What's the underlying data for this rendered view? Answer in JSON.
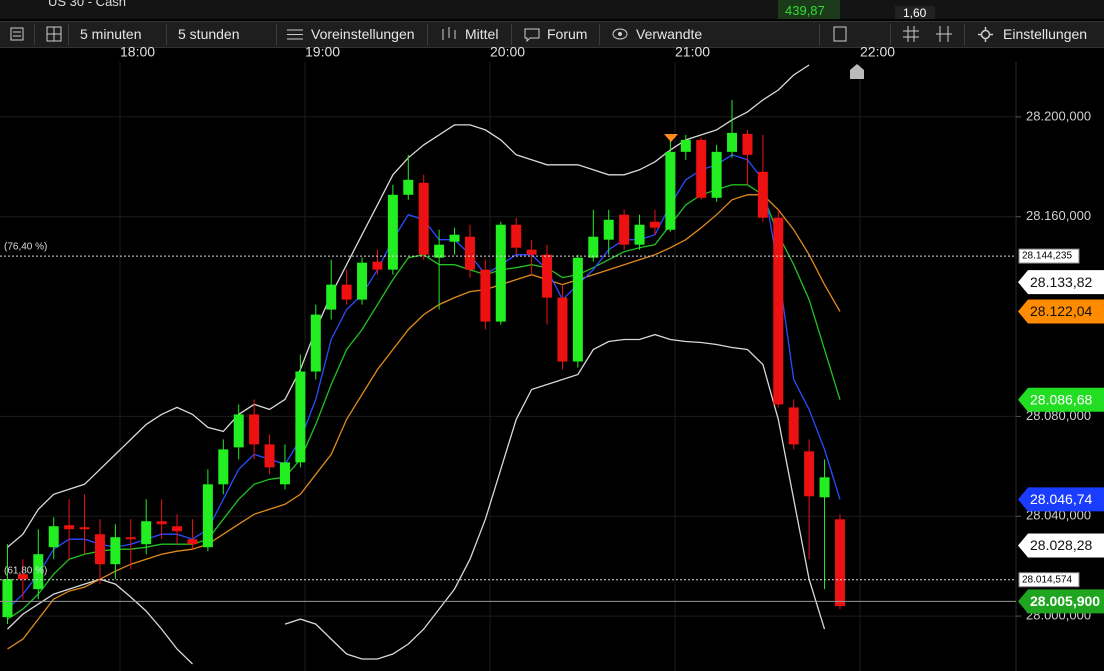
{
  "app": {
    "instrument": "US 30 - Cash",
    "price": "439,87",
    "change": "1,60"
  },
  "toolbar": {
    "items": [
      "5 minuten",
      "5 stunden",
      "Voreinstellungen",
      "Mittel",
      "Forum",
      "Verwandte",
      "Einstellungen"
    ]
  },
  "chart_data": {
    "type": "candlestick",
    "x": [
      "17:20",
      "17:25",
      "17:30",
      "17:35",
      "17:40",
      "17:45",
      "17:50",
      "17:55",
      "18:00",
      "18:05",
      "18:10",
      "18:15",
      "18:20",
      "18:25",
      "18:30",
      "18:35",
      "18:40",
      "18:45",
      "18:50",
      "18:55",
      "19:00",
      "19:05",
      "19:10",
      "19:15",
      "19:20",
      "19:25",
      "19:30",
      "19:35",
      "19:40",
      "19:45",
      "19:50",
      "19:55",
      "20:00",
      "20:05",
      "20:10",
      "20:15",
      "20:20",
      "20:25",
      "20:30",
      "20:35",
      "20:40",
      "20:45",
      "20:50",
      "20:55",
      "21:00",
      "21:05",
      "21:10",
      "21:15",
      "21:20",
      "21:25",
      "21:30",
      "21:35",
      "21:40",
      "21:45",
      "21:50"
    ],
    "open": [
      27999.6,
      28016.8,
      28010.8,
      28027.6,
      28036.4,
      28035.6,
      28032.8,
      28020.8,
      28031.6,
      28028.8,
      28038.0,
      28036.0,
      28030.8,
      28027.6,
      28052.8,
      28067.6,
      28080.8,
      28068.8,
      28052.8,
      28061.6,
      28098.0,
      28122.8,
      28132.8,
      28126.8,
      28142.0,
      28138.8,
      28168.8,
      28173.6,
      28143.6,
      28150.0,
      28152.0,
      28138.8,
      28118.0,
      28156.8,
      28146.8,
      28144.8,
      28127.6,
      28102.0,
      28143.6,
      28150.8,
      28160.8,
      28148.8,
      28158.0,
      28154.8,
      28186.0,
      28190.8,
      28167.6,
      28186.0,
      28193.2,
      28178.0,
      28159.6,
      28083.6,
      28066.0,
      28047.6,
      28038.8
    ],
    "high": [
      28028.8,
      28022.8,
      28034.8,
      28039.6,
      28046.8,
      28048.8,
      28038.8,
      28036.8,
      28038.8,
      28046.8,
      28046.8,
      28040.8,
      28038.8,
      28058.8,
      28070.8,
      28084.8,
      28086.8,
      28072.8,
      28068.8,
      28104.8,
      28124.8,
      28142.8,
      28138.8,
      28143.6,
      28146.8,
      28172.8,
      28184.8,
      28176.8,
      28154.8,
      28155.6,
      28156.8,
      28142.8,
      28158.0,
      28159.6,
      28150.8,
      28148.8,
      28132.8,
      28144.8,
      28162.8,
      28162.8,
      28162.8,
      28160.8,
      28162.8,
      28190.8,
      28192.8,
      28191.6,
      28188.8,
      28206.8,
      28194.8,
      28192.8,
      28162.8,
      28086.8,
      28070.8,
      28062.8,
      28040.8
    ],
    "low": [
      27996.8,
      28006.8,
      28006.8,
      28022.8,
      28022.8,
      28024.8,
      28012.8,
      28014.8,
      28018.8,
      28024.8,
      28030.8,
      28028.8,
      28026.8,
      28026.0,
      28048.8,
      28062.8,
      28062.8,
      28056.8,
      28050.8,
      28059.6,
      28094.8,
      28118.8,
      28124.8,
      28124.8,
      28136.8,
      28136.8,
      28166.8,
      28142.8,
      28122.8,
      28144.8,
      28135.6,
      28114.8,
      28116.8,
      28144.8,
      28136.8,
      28116.8,
      28098.8,
      28099.6,
      28142.0,
      28144.8,
      28146.8,
      28146.8,
      28152.8,
      28154.0,
      28182.8,
      28166.8,
      28166.0,
      28183.6,
      28172.8,
      28158.0,
      28083.6,
      28066.8,
      28022.8,
      28010.8,
      28002.8
    ],
    "close": [
      28014.8,
      28014.8,
      28024.8,
      28036.0,
      28034.8,
      28034.8,
      28020.8,
      28031.6,
      28030.8,
      28038.0,
      28036.8,
      28034.0,
      28028.8,
      28052.8,
      28066.8,
      28080.8,
      28068.8,
      28059.6,
      28061.6,
      28098.0,
      28120.8,
      28132.8,
      28126.8,
      28141.6,
      28138.8,
      28168.8,
      28174.8,
      28144.8,
      28148.8,
      28152.8,
      28138.8,
      28118.0,
      28156.8,
      28147.6,
      28144.8,
      28127.6,
      28102.0,
      28143.6,
      28152.0,
      28158.8,
      28148.8,
      28156.8,
      28155.6,
      28186.0,
      28190.8,
      28167.6,
      28186.0,
      28193.6,
      28184.8,
      28159.6,
      28084.8,
      28068.8,
      28048.0,
      28055.6,
      28004.0
    ],
    "up_color": "#22ee22",
    "down_color": "#ee1111",
    "series": [
      {
        "color": "#d8d8d8",
        "values": [
          28027.6,
          28032.8,
          28042.8,
          28048.8,
          28050.8,
          28052.8,
          28058.8,
          28064.8,
          28070.8,
          28076.8,
          28080.8,
          28083.6,
          28080.8,
          28075.6,
          28074.0,
          28080.8,
          28084.8,
          28082.8,
          28086.8,
          28098.8,
          28114.8,
          28128.8,
          28140.8,
          28152.8,
          28164.8,
          28176.8,
          28183.6,
          28188.8,
          28192.8,
          28196.8,
          28196.8,
          28194.8,
          28190.8,
          28184.8,
          28182.8,
          28180.8,
          28180.8,
          28180.8,
          28178.8,
          28176.8,
          28176.8,
          28178.8,
          28182.0,
          28186.8,
          28190.8,
          28192.8,
          28194.8,
          28198.8,
          28202.0,
          28206.8,
          28210.8,
          28216.8,
          28220.8,
          null,
          null
        ]
      },
      {
        "color": "#d8d8d8",
        "values": [
          27994.8,
          28000.8,
          28004.8,
          28008.8,
          28010.8,
          28012.8,
          28014.8,
          28012.8,
          28007.6,
          28002.0,
          27994.8,
          27986.8,
          27980.8,
          null,
          null,
          null,
          null,
          null,
          27996.8,
          27998.8,
          27996.8,
          27990.8,
          27984.8,
          27982.8,
          27982.8,
          27984.8,
          27988.8,
          27994.8,
          28002.8,
          28010.8,
          28022.8,
          28038.8,
          28058.8,
          28078.8,
          28090.8,
          28092.8,
          28094.8,
          28096.8,
          28106.8,
          28110.0,
          28110.8,
          28110.8,
          28112.8,
          28110.8,
          28110.0,
          28109.6,
          28108.8,
          28107.6,
          28106.8,
          28100.8,
          28078.8,
          28046.8,
          28014.8,
          27994.8,
          null
        ]
      },
      {
        "color": "#e08a1e",
        "values": [
          27986.8,
          27990.8,
          27998.8,
          28006.8,
          28010.0,
          28011.6,
          28014.8,
          28018.0,
          28020.8,
          28022.8,
          28024.8,
          28026.0,
          28026.8,
          28028.8,
          28032.8,
          28036.8,
          28040.8,
          28042.8,
          28044.8,
          28048.8,
          28056.8,
          28064.8,
          28078.8,
          28088.8,
          28098.8,
          28106.8,
          28114.8,
          28120.8,
          28124.8,
          28127.6,
          28130.0,
          28130.8,
          28132.8,
          28134.8,
          28136.8,
          28134.8,
          28132.8,
          28134.8,
          28136.8,
          28138.8,
          28140.8,
          28142.8,
          28144.8,
          28147.6,
          28150.8,
          28155.6,
          28160.8,
          28166.8,
          28168.8,
          28168.8,
          28162.8,
          28154.8,
          28144.8,
          28132.8,
          28122.04
        ]
      },
      {
        "color": "#22c022",
        "values": [
          27998.8,
          28002.8,
          28008.8,
          28016.8,
          28022.8,
          28024.8,
          28026.0,
          28026.8,
          28026.8,
          28027.6,
          28028.8,
          28028.8,
          28028.8,
          28030.8,
          28038.8,
          28046.8,
          28052.8,
          28054.8,
          28055.6,
          28062.8,
          28076.8,
          28092.8,
          28106.8,
          28114.8,
          28124.8,
          28134.8,
          28143.6,
          28144.8,
          28140.8,
          28140.8,
          28138.8,
          28136.8,
          28138.8,
          28139.6,
          28140.8,
          28139.6,
          28135.6,
          28136.8,
          28139.6,
          28142.8,
          28146.0,
          28147.6,
          28148.8,
          28156.8,
          28164.8,
          28168.8,
          28170.8,
          28172.8,
          28172.8,
          28168.8,
          28152.8,
          28140.8,
          28126.8,
          28106.8,
          28086.68
        ]
      },
      {
        "color": "#2a4cff",
        "values": [
          28002.8,
          28008.8,
          28016.8,
          28026.8,
          28030.8,
          28030.8,
          28028.8,
          28027.6,
          28028.8,
          28030.8,
          28032.8,
          28032.8,
          28030.8,
          28034.8,
          28046.8,
          28058.8,
          28064.8,
          28062.8,
          28060.8,
          28070.8,
          28086.8,
          28110.8,
          28122.8,
          28128.8,
          28138.8,
          28150.8,
          28160.8,
          28158.8,
          28150.8,
          28150.8,
          28144.8,
          28136.8,
          28140.8,
          28144.8,
          28144.8,
          28138.8,
          28126.8,
          28132.8,
          28138.8,
          28146.8,
          28150.8,
          28150.8,
          28152.8,
          28164.8,
          28174.8,
          28178.8,
          28180.8,
          28184.8,
          28182.8,
          28174.8,
          28138.8,
          28094.8,
          28082.8,
          28066.8,
          28046.74
        ]
      }
    ],
    "ylim": [
      27978,
      28222
    ],
    "yticks": [
      {
        "value": 28200,
        "label": "28.200,000"
      },
      {
        "value": 28160,
        "label": "28.160,000"
      },
      {
        "value": 28080,
        "label": "28.080,000"
      },
      {
        "value": 28040,
        "label": "28.040,000"
      },
      {
        "value": 28000,
        "label": "28.000,000"
      }
    ],
    "xticks": [
      "18:00",
      "19:00",
      "20:00",
      "21:00",
      "22:00"
    ],
    "grid": true,
    "levels": [
      {
        "label": "(76,40 %)",
        "value": 28144.235,
        "value_label": "28.144,235"
      },
      {
        "label": "(61,80 %)",
        "value": 28014.574,
        "value_label": "28.014,574"
      }
    ],
    "price_tags": [
      {
        "value": 28133.82,
        "label": "28.133,82",
        "color": "#ffffff"
      },
      {
        "value": 28122.04,
        "label": "28.122,04",
        "color": "#ff8c00"
      },
      {
        "value": 28086.68,
        "label": "28.086,68",
        "color": "#22dd22"
      },
      {
        "value": 28046.74,
        "label": "28.046,74",
        "color": "#1a3cff"
      },
      {
        "value": 28028.28,
        "label": "28.028,28",
        "color": "#ffffff"
      }
    ],
    "last_price": {
      "value": 28005.9,
      "label": "28.005,900",
      "color": "#1fa51f"
    }
  }
}
